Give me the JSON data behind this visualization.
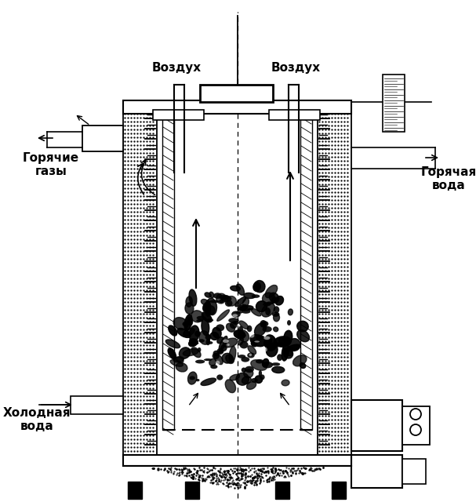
{
  "bg_color": "#ffffff",
  "line_color": "#000000",
  "labels": {
    "vozduh_left": "Воздух",
    "vozduh_right": "Воздух",
    "hot_gas": "Горячие\nгазы",
    "hot_water": "Горячая\nвода",
    "cold_water": "Холодная\nвода"
  },
  "figsize": [
    6.07,
    6.4
  ],
  "dpi": 100
}
